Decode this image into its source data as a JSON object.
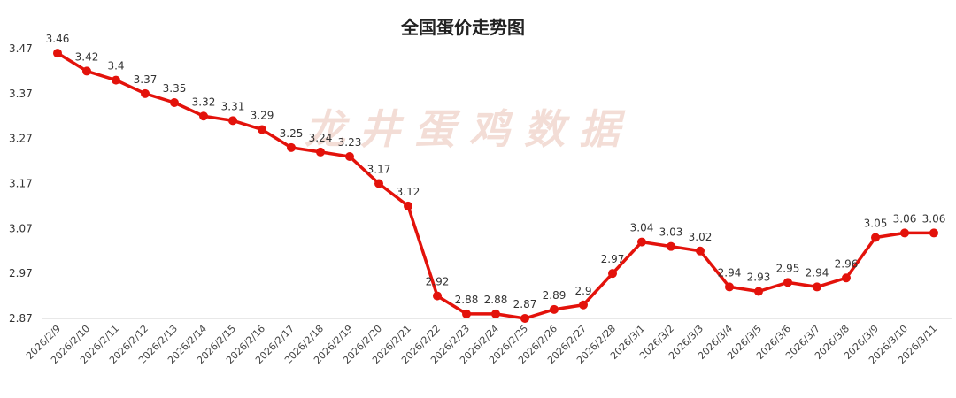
{
  "watermark": "龙井蛋鸡数据",
  "chart_data": {
    "type": "line",
    "title": "全国蛋价走势图",
    "xlabel": "",
    "ylabel": "",
    "ylim": [
      2.87,
      3.47
    ],
    "yticks": [
      "2.87",
      "2.97",
      "3.07",
      "3.17",
      "3.27",
      "3.37",
      "3.47"
    ],
    "grid": false,
    "legend": "none",
    "categories": [
      "2026/2/9",
      "2026/2/10",
      "2026/2/11",
      "2026/2/12",
      "2026/2/13",
      "2026/2/14",
      "2026/2/15",
      "2026/2/16",
      "2026/2/17",
      "2026/2/18",
      "2026/2/19",
      "2026/2/20",
      "2026/2/21",
      "2026/2/22",
      "2026/2/23",
      "2026/2/24",
      "2026/2/25",
      "2026/2/26",
      "2026/2/27",
      "2026/2/28",
      "2026/3/1",
      "2026/3/2",
      "2026/3/3",
      "2026/3/4",
      "2026/3/5",
      "2026/3/6",
      "2026/3/7",
      "2026/3/8",
      "2026/3/9",
      "2026/3/10",
      "2026/3/11"
    ],
    "series": [
      {
        "color": "#e3120b",
        "values": [
          3.46,
          3.42,
          3.4,
          3.37,
          3.35,
          3.32,
          3.31,
          3.29,
          3.25,
          3.24,
          3.23,
          3.17,
          3.12,
          2.92,
          2.88,
          2.88,
          2.87,
          2.89,
          2.9,
          2.97,
          3.04,
          3.03,
          3.02,
          2.94,
          2.93,
          2.95,
          2.94,
          2.96,
          3.05,
          3.06,
          3.06
        ]
      }
    ]
  }
}
